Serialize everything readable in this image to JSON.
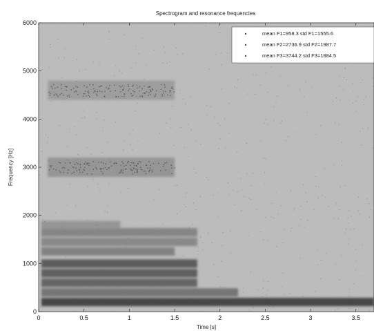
{
  "chart_data": {
    "type": "heatmap",
    "title": "Spectrogram and resonance frequencies",
    "xlabel": "Time [s]",
    "ylabel": "Frequency [Hz]",
    "xlim": [
      0,
      3.7
    ],
    "ylim": [
      0,
      6000
    ],
    "x_ticks": [
      0,
      0.5,
      1,
      1.5,
      2,
      2.5,
      3,
      3.5
    ],
    "x_tick_labels": [
      "0",
      "0.5",
      "1",
      "1.5",
      "2",
      "2.5",
      "3",
      "3.5"
    ],
    "y_ticks": [
      0,
      1000,
      2000,
      3000,
      4000,
      5000,
      6000
    ],
    "y_tick_labels": [
      "0",
      "1000",
      "2000",
      "3000",
      "4000",
      "5000",
      "6000"
    ],
    "colormap": "grayscale",
    "legend_position": "top-right",
    "legend": [
      "mean F1=958.3 std F1=1555.6",
      "mean F2=2736.9 std F2=1987.7",
      "mean F3=3744.2 std F3=1884.5"
    ],
    "harmonic_bands": [
      {
        "freq": 200,
        "t_end": 3.7,
        "intensity": 0.92
      },
      {
        "freq": 400,
        "t_end": 2.2,
        "intensity": 0.55
      },
      {
        "freq": 600,
        "t_end": 1.75,
        "intensity": 0.68
      },
      {
        "freq": 800,
        "t_end": 1.75,
        "intensity": 0.72
      },
      {
        "freq": 1000,
        "t_end": 1.75,
        "intensity": 0.75
      },
      {
        "freq": 1250,
        "t_end": 1.5,
        "intensity": 0.45
      },
      {
        "freq": 1450,
        "t_end": 1.75,
        "intensity": 0.4
      },
      {
        "freq": 1650,
        "t_end": 1.75,
        "intensity": 0.42
      },
      {
        "freq": 1800,
        "t_end": 0.9,
        "intensity": 0.3
      }
    ],
    "formant_clusters": [
      {
        "t_start": 0.1,
        "t_end": 1.5,
        "freq": 3000,
        "intensity": 0.45
      },
      {
        "t_start": 0.1,
        "t_end": 1.5,
        "freq": 4600,
        "intensity": 0.35
      }
    ],
    "colors": {
      "background": "#ffffff",
      "plot_background": "#d2d2d2",
      "text": "#222222"
    }
  }
}
